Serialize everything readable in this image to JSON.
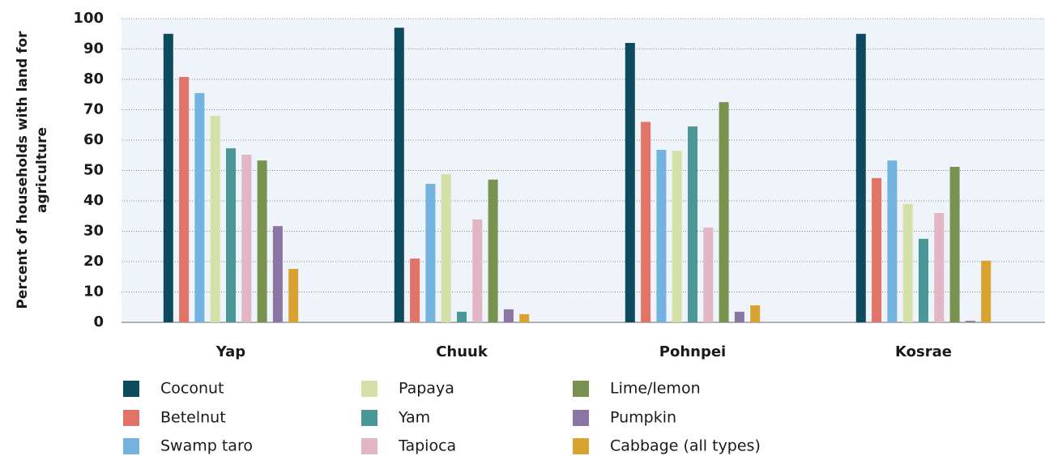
{
  "chart_data": {
    "type": "bar",
    "ylabel": [
      "Percent of households with land for",
      "agriculture"
    ],
    "categories": [
      "Yap",
      "Chuuk",
      "Pohnpei",
      "Kosrae"
    ],
    "series": [
      {
        "name": "Coconut",
        "color": "#0d4a5e",
        "values": [
          95,
          97,
          92,
          95
        ]
      },
      {
        "name": "Betelnut",
        "color": "#e07468",
        "values": [
          80.8,
          21,
          66,
          47.5
        ]
      },
      {
        "name": "Swamp taro",
        "color": "#74b3df",
        "values": [
          75.5,
          45.6,
          56.8,
          53.3
        ]
      },
      {
        "name": "Papaya",
        "color": "#d5e0a9",
        "values": [
          68,
          48.8,
          56.5,
          39
        ]
      },
      {
        "name": "Yam",
        "color": "#4a9797",
        "values": [
          57.3,
          3.5,
          64.5,
          27.5
        ]
      },
      {
        "name": "Tapioca",
        "color": "#e2b6c5",
        "values": [
          55.2,
          33.9,
          31.2,
          36
        ]
      },
      {
        "name": "Lime/lemon",
        "color": "#789250",
        "values": [
          53.3,
          47,
          72.5,
          51.2
        ]
      },
      {
        "name": "Pumpkin",
        "color": "#8b76a3",
        "values": [
          31.7,
          4.3,
          3.5,
          0.5
        ]
      },
      {
        "name": "Cabbage (all types)",
        "color": "#d9a332",
        "values": [
          17.6,
          2.7,
          5.6,
          20.3
        ]
      }
    ],
    "ylim": [
      0,
      100
    ],
    "yticks": [
      0,
      10,
      20,
      30,
      40,
      50,
      60,
      70,
      80,
      90,
      100
    ],
    "grid": true
  }
}
